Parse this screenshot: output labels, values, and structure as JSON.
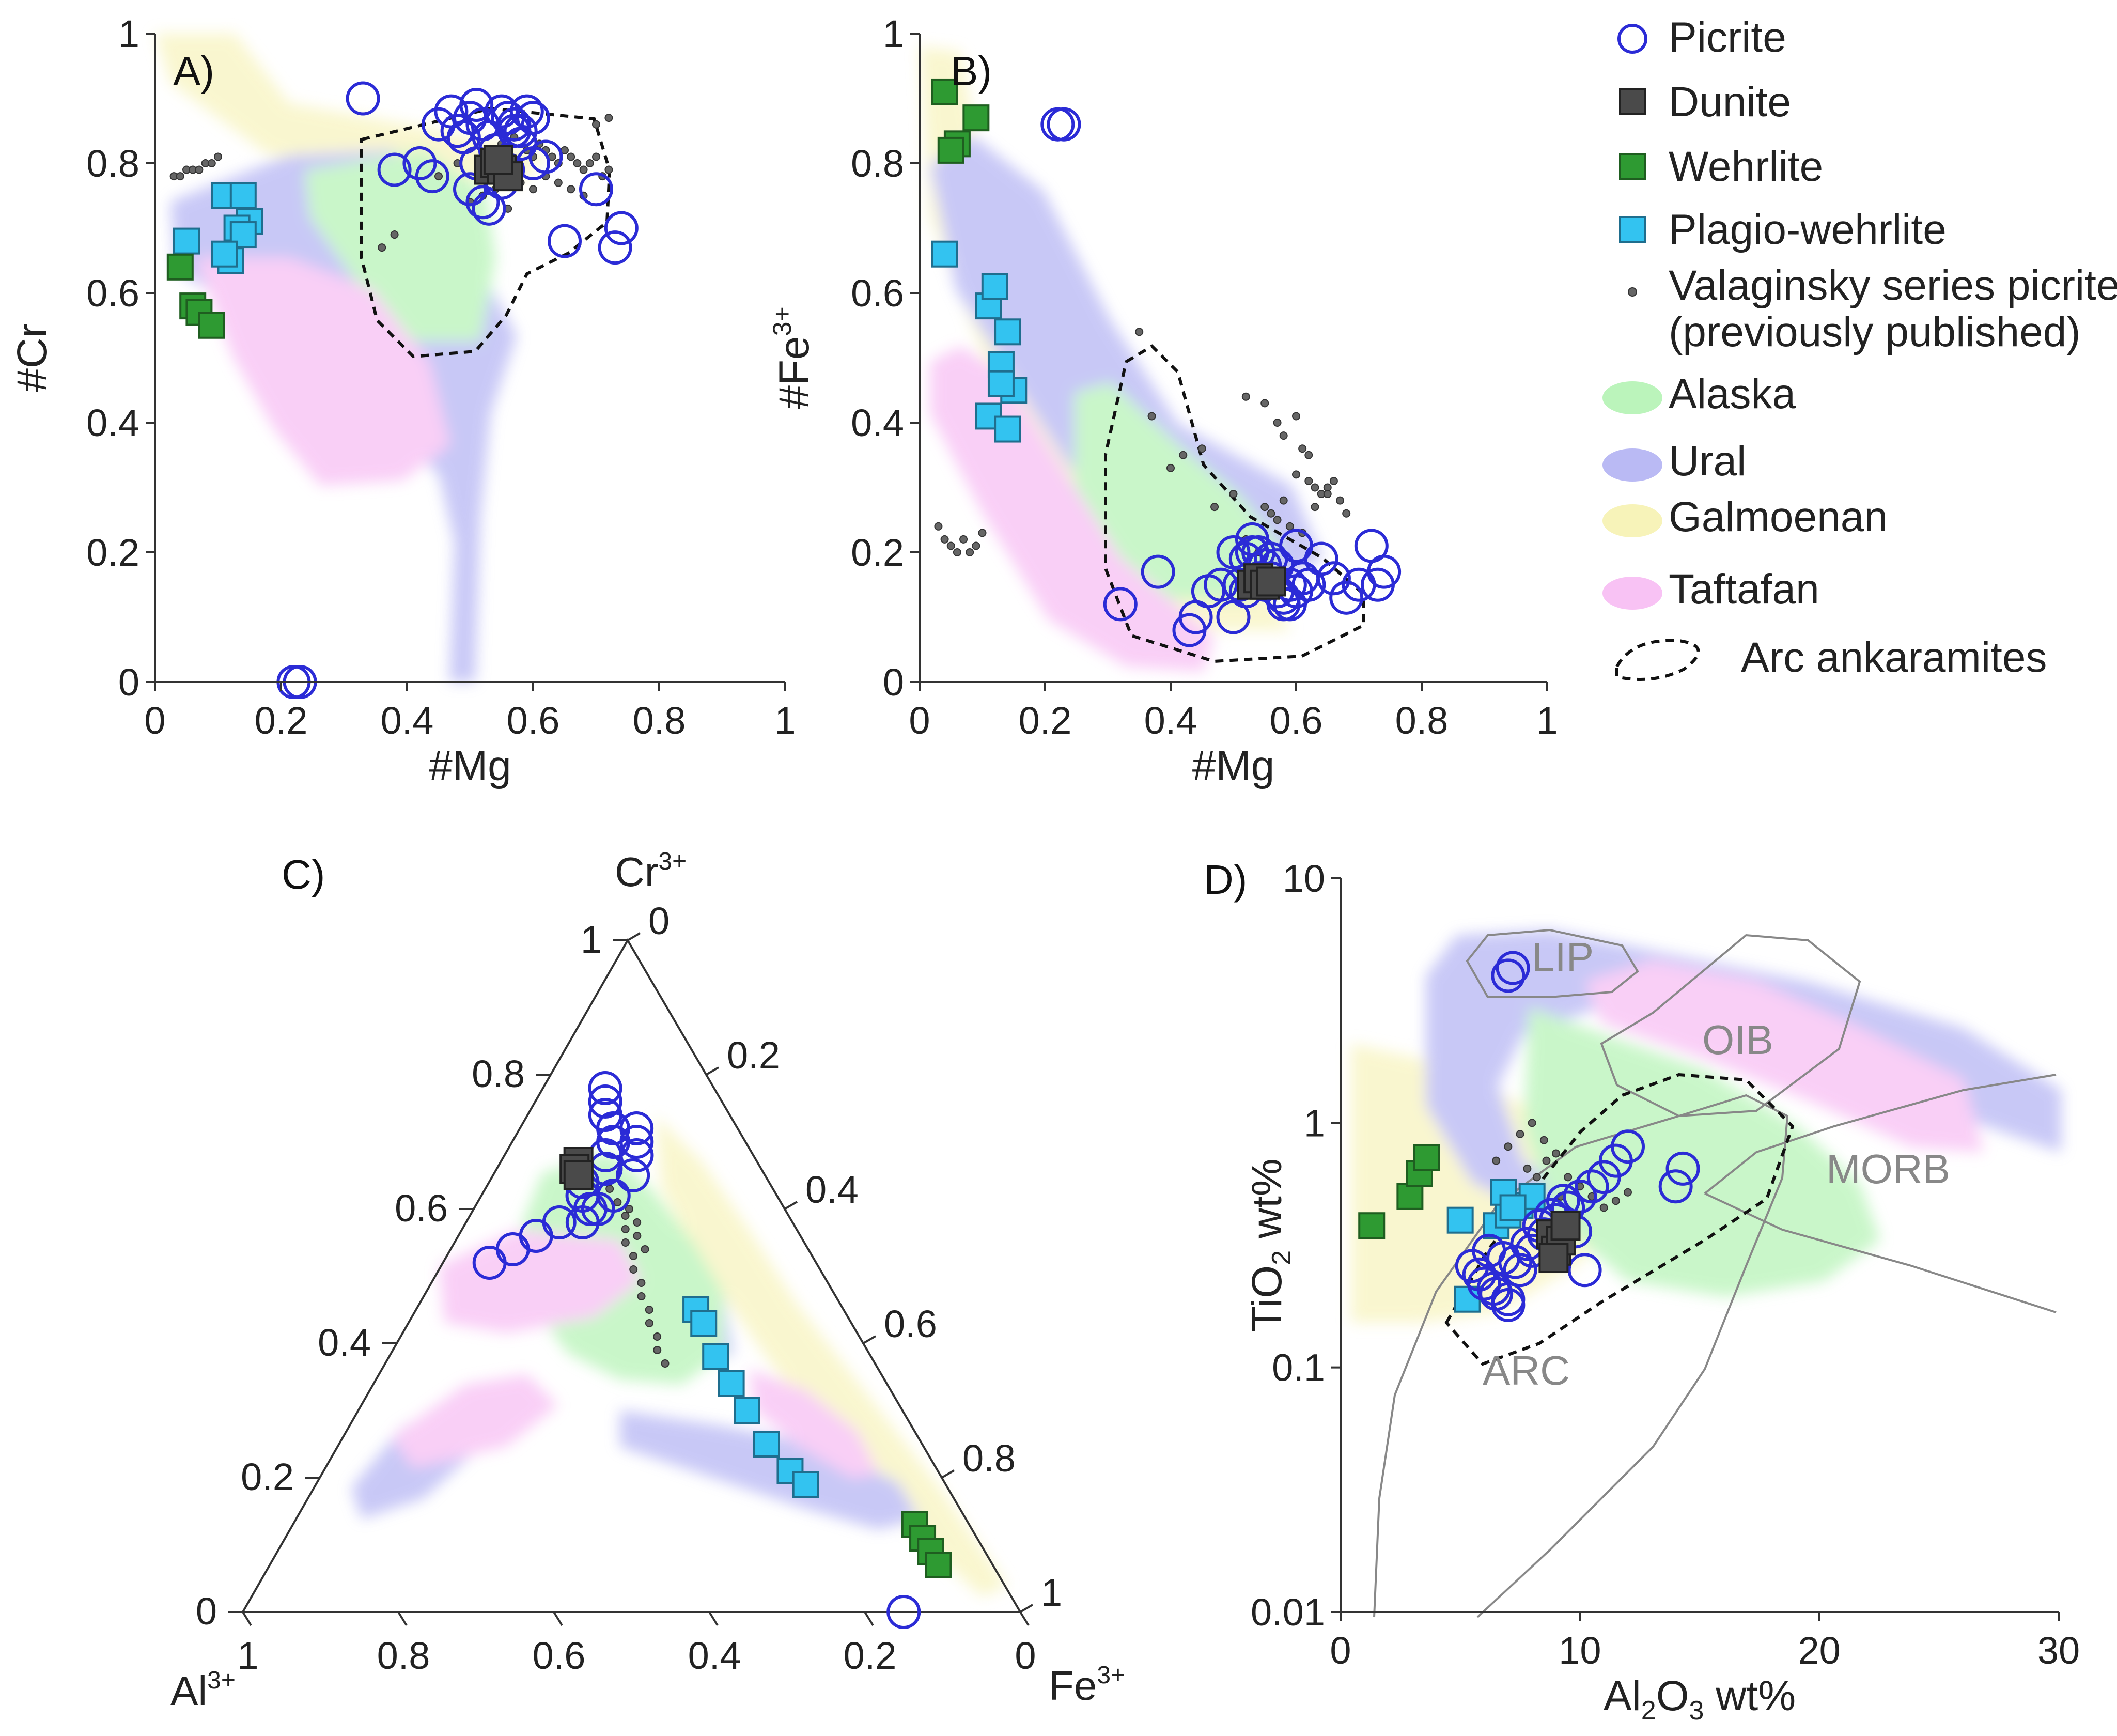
{
  "figure": "Spinel composition diagrams",
  "colors": {
    "picrite": "#2b2bd6",
    "dunite": "#4a4a4a",
    "wehrlite": "#2e9a32",
    "plagio_wehrlite": "#33c3f0",
    "valaginsky": "#666666",
    "alaska": "#9ef09e",
    "ural": "#9c9cf0",
    "galmoenan": "#f5f0a8",
    "taftafan": "#f5a8f0",
    "arc": "#000000"
  },
  "legend": {
    "items": [
      {
        "key": "picrite",
        "label": "Picrite"
      },
      {
        "key": "dunite",
        "label": "Dunite"
      },
      {
        "key": "wehrlite",
        "label": "Wehrlite"
      },
      {
        "key": "plagio_wehrlite",
        "label": "Plagio-wehrlite"
      },
      {
        "key": "valaginsky",
        "label": "Valaginsky series picrites",
        "label2": "(previously published)"
      },
      {
        "key": "alaska",
        "label": "Alaska"
      },
      {
        "key": "ural",
        "label": "Ural"
      },
      {
        "key": "galmoenan",
        "label": "Galmoenan"
      },
      {
        "key": "taftafan",
        "label": "Taftafan"
      },
      {
        "key": "arc",
        "label": "Arc ankaramites"
      }
    ]
  },
  "chart_data": [
    {
      "id": "A",
      "type": "scatter",
      "panel_label": "A)",
      "xlabel": "#Mg",
      "ylabel": "#Cr",
      "xlim": [
        0,
        1
      ],
      "ylim": [
        0,
        1
      ],
      "xticks": [
        "0",
        "0.2",
        "0.4",
        "0.6",
        "0.8",
        "1"
      ],
      "yticks": [
        "0",
        "0.2",
        "0.4",
        "0.6",
        "0.8",
        "1"
      ],
      "series": [
        {
          "name": "Picrite",
          "x": [
            0.33,
            0.38,
            0.42,
            0.44,
            0.45,
            0.47,
            0.48,
            0.5,
            0.51,
            0.52,
            0.53,
            0.54,
            0.55,
            0.56,
            0.57,
            0.58,
            0.59,
            0.6,
            0.62,
            0.65,
            0.7,
            0.73,
            0.74,
            0.5,
            0.53,
            0.56,
            0.58,
            0.6,
            0.52,
            0.55,
            0.22,
            0.23,
            0.49,
            0.51,
            0.57
          ],
          "y": [
            0.9,
            0.79,
            0.8,
            0.78,
            0.86,
            0.88,
            0.85,
            0.87,
            0.89,
            0.86,
            0.84,
            0.82,
            0.88,
            0.87,
            0.86,
            0.85,
            0.88,
            0.8,
            0.81,
            0.68,
            0.76,
            0.67,
            0.7,
            0.76,
            0.73,
            0.79,
            0.83,
            0.87,
            0.74,
            0.77,
            0.0,
            0.0,
            0.84,
            0.8,
            0.85
          ]
        },
        {
          "name": "Dunite",
          "x": [
            0.53,
            0.54,
            0.55,
            0.56,
            0.545
          ],
          "y": [
            0.79,
            0.8,
            0.79,
            0.78,
            0.805
          ]
        },
        {
          "name": "Wehrlite",
          "x": [
            0.04,
            0.06,
            0.07,
            0.09
          ],
          "y": [
            0.64,
            0.58,
            0.57,
            0.55
          ]
        },
        {
          "name": "Plagio-wehrlite",
          "x": [
            0.05,
            0.11,
            0.14,
            0.15,
            0.13,
            0.12,
            0.14,
            0.11
          ],
          "y": [
            0.68,
            0.75,
            0.75,
            0.71,
            0.7,
            0.65,
            0.69,
            0.66
          ]
        },
        {
          "name": "Valaginsky series picrites",
          "x": [
            0.03,
            0.04,
            0.05,
            0.06,
            0.07,
            0.08,
            0.09,
            0.1,
            0.55,
            0.57,
            0.59,
            0.6,
            0.61,
            0.62,
            0.63,
            0.64,
            0.65,
            0.66,
            0.67,
            0.68,
            0.69,
            0.7,
            0.71,
            0.72,
            0.58,
            0.6,
            0.62,
            0.64,
            0.66,
            0.68,
            0.5,
            0.52,
            0.54,
            0.56,
            0.45,
            0.48,
            0.38,
            0.36,
            0.7,
            0.72
          ],
          "y": [
            0.78,
            0.78,
            0.79,
            0.79,
            0.79,
            0.8,
            0.8,
            0.81,
            0.83,
            0.84,
            0.82,
            0.81,
            0.83,
            0.82,
            0.81,
            0.8,
            0.82,
            0.81,
            0.8,
            0.79,
            0.8,
            0.81,
            0.78,
            0.79,
            0.77,
            0.76,
            0.78,
            0.77,
            0.76,
            0.75,
            0.74,
            0.75,
            0.76,
            0.73,
            0.78,
            0.8,
            0.69,
            0.67,
            0.86,
            0.87
          ]
        }
      ]
    },
    {
      "id": "B",
      "type": "scatter",
      "panel_label": "B)",
      "xlabel": "#Mg",
      "ylabel": "#Fe",
      "ylabel_sup": "3+",
      "xlim": [
        0,
        1
      ],
      "ylim": [
        0,
        1
      ],
      "xticks": [
        "0",
        "0.2",
        "0.4",
        "0.6",
        "0.8",
        "1"
      ],
      "yticks": [
        "0",
        "0.2",
        "0.4",
        "0.6",
        "0.8",
        "1"
      ],
      "series": [
        {
          "name": "Picrite",
          "x": [
            0.22,
            0.23,
            0.32,
            0.38,
            0.43,
            0.44,
            0.46,
            0.48,
            0.5,
            0.51,
            0.52,
            0.53,
            0.54,
            0.55,
            0.56,
            0.57,
            0.58,
            0.59,
            0.6,
            0.62,
            0.64,
            0.66,
            0.68,
            0.7,
            0.72,
            0.74,
            0.5,
            0.52,
            0.54,
            0.56,
            0.58,
            0.6,
            0.53,
            0.55,
            0.57,
            0.59,
            0.61,
            0.73
          ],
          "y": [
            0.86,
            0.86,
            0.12,
            0.17,
            0.08,
            0.1,
            0.14,
            0.15,
            0.2,
            0.15,
            0.19,
            0.22,
            0.2,
            0.18,
            0.16,
            0.14,
            0.12,
            0.15,
            0.21,
            0.15,
            0.19,
            0.16,
            0.13,
            0.15,
            0.21,
            0.17,
            0.1,
            0.14,
            0.16,
            0.19,
            0.13,
            0.14,
            0.2,
            0.15,
            0.18,
            0.12,
            0.16,
            0.15
          ]
        },
        {
          "name": "Dunite",
          "x": [
            0.53,
            0.54,
            0.55,
            0.56
          ],
          "y": [
            0.15,
            0.16,
            0.15,
            0.155
          ]
        },
        {
          "name": "Wehrlite",
          "x": [
            0.04,
            0.06,
            0.05,
            0.09
          ],
          "y": [
            0.91,
            0.83,
            0.82,
            0.87
          ]
        },
        {
          "name": "Plagio-wehrlite",
          "x": [
            0.04,
            0.11,
            0.12,
            0.14,
            0.13,
            0.15,
            0.13,
            0.11,
            0.14
          ],
          "y": [
            0.66,
            0.58,
            0.61,
            0.54,
            0.49,
            0.45,
            0.46,
            0.41,
            0.39
          ]
        },
        {
          "name": "Valaginsky series picrites",
          "x": [
            0.03,
            0.04,
            0.05,
            0.06,
            0.07,
            0.08,
            0.09,
            0.1,
            0.35,
            0.37,
            0.4,
            0.42,
            0.45,
            0.47,
            0.5,
            0.52,
            0.55,
            0.57,
            0.58,
            0.6,
            0.61,
            0.62,
            0.63,
            0.64,
            0.65,
            0.66,
            0.67,
            0.68,
            0.6,
            0.62,
            0.55,
            0.57,
            0.59,
            0.61,
            0.63,
            0.65,
            0.52,
            0.54,
            0.56,
            0.58
          ],
          "y": [
            0.24,
            0.22,
            0.21,
            0.2,
            0.22,
            0.2,
            0.21,
            0.23,
            0.54,
            0.41,
            0.33,
            0.35,
            0.36,
            0.27,
            0.29,
            0.44,
            0.43,
            0.4,
            0.38,
            0.41,
            0.36,
            0.31,
            0.3,
            0.29,
            0.3,
            0.31,
            0.28,
            0.26,
            0.32,
            0.35,
            0.27,
            0.25,
            0.24,
            0.23,
            0.27,
            0.29,
            0.22,
            0.2,
            0.26,
            0.28
          ]
        }
      ]
    },
    {
      "id": "C",
      "type": "scatter",
      "subtype": "ternary",
      "panel_label": "C)",
      "vertices": {
        "top": "Cr",
        "top_sup": "3+",
        "left": "Al",
        "left_sup": "3+",
        "right": "Fe",
        "right_sup": "3+"
      },
      "left_edge_ticks": [
        "0",
        "0.2",
        "0.4",
        "0.6",
        "0.8",
        "1"
      ],
      "right_edge_ticks": [
        "0",
        "0.2",
        "0.4",
        "0.6",
        "0.8",
        "1"
      ],
      "bottom_edge_ticks": [
        "1",
        "0.8",
        "0.6",
        "0.4",
        "0.2",
        "0"
      ],
      "series": [
        {
          "name": "Picrite",
          "cr": [
            0.78,
            0.76,
            0.74,
            0.72,
            0.7,
            0.68,
            0.66,
            0.64,
            0.62,
            0.6,
            0.58,
            0.56,
            0.54,
            0.52,
            0.72,
            0.7,
            0.68,
            0.65,
            0.62,
            0.6,
            0.58,
            0.0
          ],
          "fe": [
            0.08,
            0.09,
            0.1,
            0.12,
            0.13,
            0.13,
            0.14,
            0.12,
            0.13,
            0.15,
            0.12,
            0.1,
            0.08,
            0.06,
            0.15,
            0.16,
            0.17,
            0.18,
            0.17,
            0.16,
            0.15,
            0.85
          ]
        },
        {
          "name": "Dunite",
          "cr": [
            0.67,
            0.66,
            0.65
          ],
          "fe": [
            0.1,
            0.1,
            0.11
          ]
        },
        {
          "name": "Wehrlite",
          "cr": [
            0.13,
            0.11,
            0.09,
            0.07
          ],
          "fe": [
            0.8,
            0.82,
            0.84,
            0.86
          ]
        },
        {
          "name": "Plagio-wehrlite",
          "cr": [
            0.45,
            0.43,
            0.38,
            0.34,
            0.3,
            0.25,
            0.21,
            0.19
          ],
          "fe": [
            0.36,
            0.38,
            0.42,
            0.46,
            0.5,
            0.55,
            0.6,
            0.63
          ]
        },
        {
          "name": "Valaginsky series picrites",
          "cr": [
            0.63,
            0.61,
            0.59,
            0.57,
            0.55,
            0.53,
            0.51,
            0.49,
            0.47,
            0.45,
            0.43,
            0.41,
            0.39,
            0.37,
            0.6,
            0.58,
            0.56,
            0.54
          ],
          "fe": [
            0.16,
            0.18,
            0.2,
            0.21,
            0.22,
            0.24,
            0.25,
            0.27,
            0.28,
            0.3,
            0.31,
            0.33,
            0.34,
            0.36,
            0.2,
            0.22,
            0.23,
            0.25
          ]
        }
      ]
    },
    {
      "id": "D",
      "type": "scatter",
      "panel_label": "D)",
      "xlabel": "Al",
      "xlabel_sub": "2",
      "xlabel_rest": "O",
      "xlabel_sub2": "3",
      "xlabel_tail": " wt%",
      "ylabel": "TiO",
      "ylabel_sub": "2",
      "ylabel_tail": " wt%",
      "xlim": [
        0,
        30
      ],
      "ylim": [
        0.01,
        10
      ],
      "yscale": "log",
      "xticks": [
        "0",
        "10",
        "20",
        "30"
      ],
      "yticks": [
        "0.01",
        "0.1",
        "1",
        "10"
      ],
      "region_labels": [
        "LIP",
        "OIB",
        "MORB",
        "ARC"
      ],
      "series": [
        {
          "name": "Picrite",
          "x": [
            7.2,
            7.0,
            5.5,
            6.0,
            6.5,
            7.0,
            7.5,
            8.0,
            8.5,
            9.0,
            9.5,
            10.0,
            10.5,
            11.0,
            11.5,
            12.0,
            14.0,
            14.3,
            6.2,
            6.8,
            7.3,
            7.8,
            8.3,
            8.8,
            9.3,
            9.8,
            10.2,
            5.8,
            6.4,
            7.0
          ],
          "y": [
            4.3,
            4.0,
            0.26,
            0.22,
            0.2,
            0.18,
            0.25,
            0.3,
            0.35,
            0.4,
            0.45,
            0.5,
            0.55,
            0.6,
            0.7,
            0.8,
            0.55,
            0.65,
            0.3,
            0.28,
            0.27,
            0.32,
            0.38,
            0.42,
            0.48,
            0.36,
            0.25,
            0.24,
            0.21,
            0.19
          ]
        },
        {
          "name": "Dunite",
          "x": [
            8.8,
            9.0,
            9.2,
            9.4,
            8.9
          ],
          "y": [
            0.35,
            0.3,
            0.33,
            0.38,
            0.28
          ]
        },
        {
          "name": "Wehrlite",
          "x": [
            1.3,
            2.9,
            3.3,
            3.6
          ],
          "y": [
            0.38,
            0.5,
            0.62,
            0.72
          ]
        },
        {
          "name": "Plagio-wehrlite",
          "x": [
            5.3,
            6.5,
            7.0,
            7.5,
            8.0,
            6.8,
            7.2,
            5.0
          ],
          "y": [
            0.19,
            0.38,
            0.42,
            0.46,
            0.5,
            0.52,
            0.45,
            0.4
          ]
        },
        {
          "name": "Valaginsky series picrites",
          "x": [
            6.5,
            7.0,
            7.5,
            8.0,
            8.5,
            9.0,
            9.5,
            10.0,
            10.5,
            11.0,
            7.8,
            8.2,
            8.6,
            9.2,
            9.8,
            11.5,
            12.0
          ],
          "y": [
            0.7,
            0.8,
            0.9,
            1.0,
            0.85,
            0.75,
            0.6,
            0.55,
            0.5,
            0.45,
            0.65,
            0.6,
            0.7,
            0.5,
            0.42,
            0.48,
            0.52
          ]
        }
      ]
    }
  ]
}
